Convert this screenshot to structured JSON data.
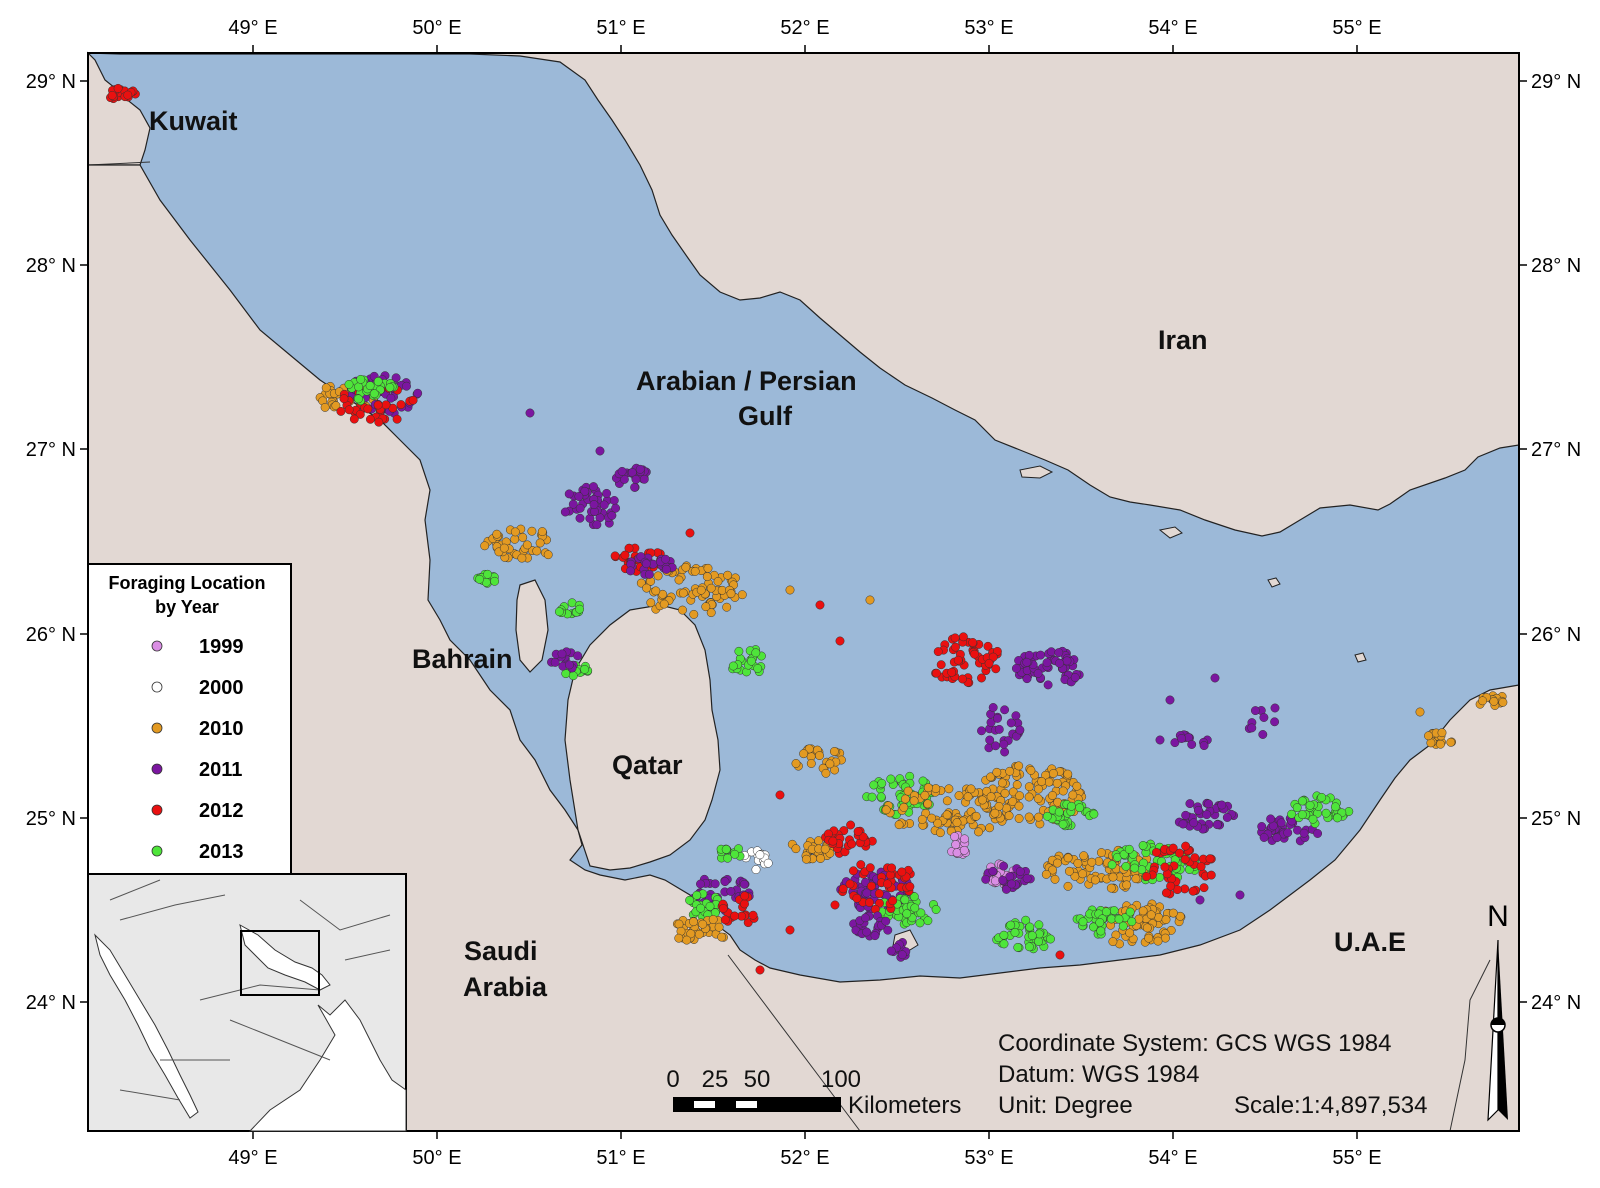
{
  "colors": {
    "water": "#9cb9d8",
    "land": "#e2d8d3",
    "y1999": "#da8ee4",
    "y2000": "#ffffff",
    "y2010": "#e39a22",
    "y2011": "#7b16a0",
    "y2012": "#ea1010",
    "y2013": "#4ee53a"
  },
  "axes": {
    "lon_labels": [
      "49° E",
      "50° E",
      "51° E",
      "52° E",
      "53° E",
      "54° E",
      "55° E"
    ],
    "lat_labels": [
      "29° N",
      "28° N",
      "27° N",
      "26° N",
      "25° N",
      "24° N"
    ]
  },
  "places": {
    "kuwait": "Kuwait",
    "iran": "Iran",
    "gulf_line1": "Arabian / Persian",
    "gulf_line2": "Gulf",
    "bahrain": "Bahrain",
    "qatar": "Qatar",
    "saudi_line1": "Saudi",
    "saudi_line2": "Arabia",
    "uae": "U.A.E"
  },
  "legend": {
    "title_line1": "Foraging Location",
    "title_line2": "by Year",
    "items": [
      {
        "label": "1999",
        "color": "#da8ee4"
      },
      {
        "label": "2000",
        "color": "#ffffff"
      },
      {
        "label": "2010",
        "color": "#e39a22"
      },
      {
        "label": "2011",
        "color": "#7b16a0"
      },
      {
        "label": "2012",
        "color": "#ea1010"
      },
      {
        "label": "2013",
        "color": "#4ee53a"
      }
    ]
  },
  "info": {
    "coordinate_system": "Coordinate System: GCS WGS 1984",
    "datum": "Datum: WGS 1984",
    "unit": "Unit: Degree",
    "scale": "Scale:1:4,897,534"
  },
  "scalebar": {
    "labels": [
      "0",
      "25",
      "50",
      "100"
    ],
    "units": "Kilometers"
  },
  "north_arrow": {
    "letter": "N"
  }
}
